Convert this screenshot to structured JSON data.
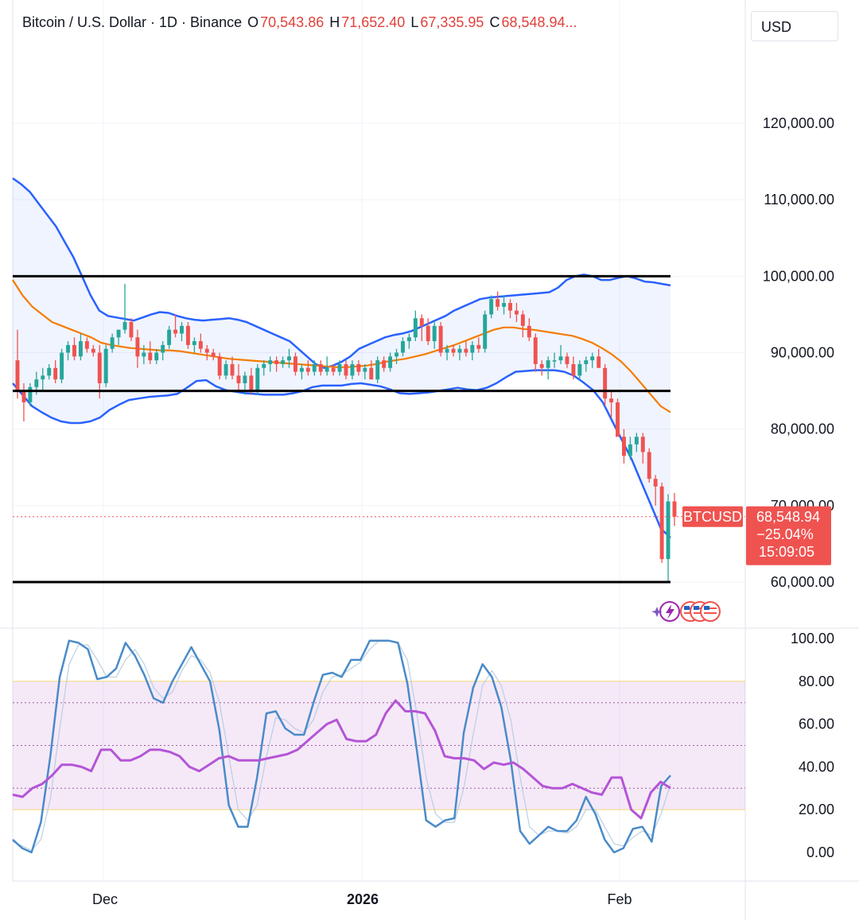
{
  "header": {
    "symbol": "Bitcoin / U.S. Dollar · 1D · Binance",
    "o_label": "O",
    "o_value": "70,543.86",
    "h_label": "H",
    "h_value": "71,652.40",
    "l_label": "L",
    "l_value": "67,335.95",
    "c_label": "C",
    "c_value": "68,548.94..."
  },
  "currency_button": "USD",
  "price_badge": {
    "ticker": "BTCUSD",
    "price": "68,548.94",
    "change": "−25.04%",
    "countdown": "15:09:05"
  },
  "colors": {
    "up": "#26a69a",
    "down": "#ef5350",
    "band": "#2962ff",
    "basis": "#f57c00",
    "stoch": "#4a8bc9",
    "rsi": "#b455d6",
    "badge": "#ef5350"
  },
  "chart_data": [
    {
      "type": "candlestick",
      "title": "Bitcoin / U.S. Dollar · 1D · Binance",
      "ylim": [
        55000,
        131000
      ],
      "y_ticks": [
        "120,000.00",
        "110,000.00",
        "100,000.00",
        "90,000.00",
        "80,000.00",
        "70,000.00",
        "60,000.00"
      ],
      "x_ticks": [
        "Dec",
        "2026",
        "Feb"
      ],
      "candles": [
        [
          89000,
          93000,
          84000,
          85000
        ],
        [
          85000,
          86000,
          81000,
          83500
        ],
        [
          83500,
          86000,
          83000,
          85500
        ],
        [
          85500,
          87500,
          84500,
          86500
        ],
        [
          86500,
          88000,
          85000,
          87000
        ],
        [
          87000,
          88500,
          86500,
          88000
        ],
        [
          88000,
          89000,
          86000,
          86500
        ],
        [
          86500,
          90500,
          86000,
          90000
        ],
        [
          90000,
          91500,
          89000,
          91000
        ],
        [
          91000,
          92000,
          89000,
          89500
        ],
        [
          89500,
          92500,
          89000,
          91500
        ],
        [
          91500,
          92000,
          90000,
          90500
        ],
        [
          90500,
          91000,
          89500,
          90000
        ],
        [
          90000,
          91000,
          84000,
          86000
        ],
        [
          86000,
          91000,
          85500,
          90500
        ],
        [
          90500,
          92500,
          90000,
          92000
        ],
        [
          92000,
          93000,
          91000,
          93000
        ],
        [
          93000,
          99000,
          92500,
          94000
        ],
        [
          94000,
          94500,
          91500,
          92000
        ],
        [
          92000,
          93000,
          88000,
          89500
        ],
        [
          89500,
          91000,
          88500,
          90000
        ],
        [
          90000,
          91500,
          88500,
          89000
        ],
        [
          89000,
          90500,
          88500,
          90000
        ],
        [
          90000,
          91500,
          89000,
          91000
        ],
        [
          91000,
          93500,
          90500,
          93000
        ],
        [
          93000,
          95000,
          92000,
          92500
        ],
        [
          92500,
          94000,
          91500,
          93500
        ],
        [
          93500,
          94000,
          90500,
          91000
        ],
        [
          91000,
          92000,
          90000,
          91500
        ],
        [
          91500,
          92500,
          90000,
          90500
        ],
        [
          90500,
          91000,
          89000,
          90000
        ],
        [
          90000,
          90500,
          89000,
          89500
        ],
        [
          89500,
          90000,
          86500,
          87000
        ],
        [
          87000,
          89000,
          86500,
          88500
        ],
        [
          88500,
          89500,
          86500,
          87000
        ],
        [
          87000,
          88500,
          85000,
          86000
        ],
        [
          86000,
          87500,
          84500,
          87000
        ],
        [
          87000,
          88000,
          84500,
          85000
        ],
        [
          85000,
          88500,
          84500,
          88000
        ],
        [
          88000,
          89000,
          87000,
          88500
        ],
        [
          88500,
          89500,
          87500,
          89000
        ],
        [
          89000,
          89500,
          87500,
          88500
        ],
        [
          88500,
          89500,
          88000,
          89000
        ],
        [
          89000,
          90500,
          88000,
          89500
        ],
        [
          89500,
          90000,
          87000,
          87500
        ],
        [
          87500,
          88500,
          86500,
          88000
        ],
        [
          88000,
          89000,
          87000,
          87500
        ],
        [
          87500,
          89000,
          87000,
          88500
        ],
        [
          88500,
          89000,
          87000,
          87500
        ],
        [
          87500,
          89500,
          87000,
          88000
        ],
        [
          88000,
          88500,
          87000,
          87500
        ],
        [
          87500,
          89000,
          87000,
          88500
        ],
        [
          88500,
          89000,
          86500,
          87000
        ],
        [
          87000,
          89000,
          86500,
          88500
        ],
        [
          88500,
          89000,
          87000,
          87500
        ],
        [
          87500,
          88500,
          86500,
          88000
        ],
        [
          88000,
          89000,
          86500,
          86500
        ],
        [
          86500,
          89500,
          86000,
          89000
        ],
        [
          89000,
          89500,
          87500,
          88000
        ],
        [
          88000,
          90000,
          87500,
          89500
        ],
        [
          89500,
          90500,
          88500,
          90000
        ],
        [
          90000,
          92000,
          89500,
          91500
        ],
        [
          91500,
          92500,
          90500,
          92000
        ],
        [
          92000,
          95500,
          91500,
          94500
        ],
        [
          94500,
          95000,
          91500,
          93500
        ],
        [
          93500,
          94500,
          91000,
          91500
        ],
        [
          91500,
          94000,
          90500,
          93500
        ],
        [
          93500,
          94000,
          89500,
          90000
        ],
        [
          90000,
          91000,
          89000,
          90500
        ],
        [
          90500,
          91000,
          89500,
          90000
        ],
        [
          90000,
          91000,
          89000,
          90500
        ],
        [
          90500,
          91500,
          89500,
          90000
        ],
        [
          90000,
          91500,
          89000,
          91000
        ],
        [
          91000,
          92000,
          90000,
          90500
        ],
        [
          90500,
          95500,
          90000,
          95000
        ],
        [
          95000,
          97500,
          94500,
          97000
        ],
        [
          97000,
          98000,
          95500,
          96000
        ],
        [
          96000,
          97500,
          95000,
          96500
        ],
        [
          96500,
          97000,
          94500,
          95500
        ],
        [
          95500,
          96500,
          94000,
          95000
        ],
        [
          95000,
          95500,
          92000,
          93500
        ],
        [
          93500,
          94500,
          91500,
          92000
        ],
        [
          92000,
          92500,
          87500,
          88500
        ],
        [
          88500,
          89000,
          87000,
          88000
        ],
        [
          88000,
          89500,
          86500,
          89000
        ],
        [
          89000,
          90000,
          88000,
          89000
        ],
        [
          89000,
          91000,
          88500,
          89500
        ],
        [
          89500,
          90000,
          88000,
          88500
        ],
        [
          88500,
          89500,
          86500,
          87000
        ],
        [
          87000,
          89000,
          86500,
          88500
        ],
        [
          88500,
          89500,
          87500,
          89000
        ],
        [
          89000,
          90000,
          88000,
          89500
        ],
        [
          89500,
          90500,
          88500,
          88000
        ],
        [
          88000,
          88500,
          83000,
          84000
        ],
        [
          84000,
          85000,
          81500,
          83500
        ],
        [
          83500,
          84000,
          79000,
          79000
        ],
        [
          79000,
          80000,
          75500,
          76500
        ],
        [
          76500,
          79000,
          76000,
          78000
        ],
        [
          78000,
          79500,
          77000,
          79000
        ],
        [
          79000,
          79500,
          75500,
          77000
        ],
        [
          77000,
          77500,
          73000,
          73500
        ],
        [
          73500,
          74000,
          70000,
          72500
        ],
        [
          72500,
          73000,
          62500,
          63000
        ],
        [
          63000,
          71500,
          60000,
          70543
        ],
        [
          70543,
          71652,
          67335,
          68548
        ]
      ],
      "series": [
        {
          "name": "upper",
          "values": [
            112800,
            112000,
            111000,
            109500,
            108000,
            106500,
            104500,
            102500,
            100000,
            97500,
            95500,
            94800,
            94600,
            94400,
            94200,
            94600,
            95000,
            95300,
            95200,
            94800,
            94500,
            94300,
            94200,
            94300,
            94400,
            94500,
            94300,
            94000,
            93500,
            93000,
            92500,
            92000,
            91500,
            90500,
            89500,
            88500,
            88000,
            88300,
            88800,
            89500,
            90500,
            91000,
            91500,
            92000,
            92300,
            92500,
            92800,
            93300,
            93800,
            94300,
            94800,
            95500,
            96000,
            96500,
            97000,
            97200,
            97300,
            97400,
            97500,
            97600,
            97700,
            97800,
            97900,
            98500,
            99500,
            100000,
            100200,
            100000,
            99500,
            99500,
            99800,
            100000,
            99700,
            99300,
            99200,
            99000,
            98800
          ],
          "x_start": 0
        },
        {
          "name": "basis",
          "values": [
            99500,
            97500,
            96000,
            95000,
            94000,
            93500,
            93000,
            92500,
            92000,
            91300,
            91000,
            90800,
            90600,
            90500,
            90400,
            90300,
            90300,
            90200,
            90000,
            89800,
            89600,
            89400,
            89200,
            89100,
            89000,
            88900,
            88800,
            88700,
            88600,
            88500,
            88400,
            88300,
            88200,
            88100,
            88100,
            88200,
            88300,
            88500,
            88800,
            89000,
            89200,
            89500,
            89800,
            90200,
            90600,
            91000,
            91500,
            92000,
            92500,
            93000,
            93300,
            93300,
            93100,
            93000,
            92800,
            92600,
            92400,
            92200,
            91800,
            91300,
            90600,
            89800,
            88800,
            87500,
            86000,
            84500,
            83000,
            82200
          ],
          "x_start": 0
        },
        {
          "name": "lower",
          "values": [
            86000,
            84500,
            83000,
            82200,
            81500,
            81000,
            80800,
            80800,
            81000,
            81500,
            82500,
            83200,
            83800,
            84000,
            84200,
            84300,
            84400,
            84600,
            85400,
            86300,
            86400,
            85600,
            85100,
            84900,
            84700,
            84600,
            84500,
            84500,
            84500,
            84700,
            85000,
            85500,
            85700,
            85700,
            85700,
            85900,
            86000,
            85800,
            85600,
            85200,
            84700,
            84600,
            84700,
            84800,
            85000,
            85200,
            85400,
            85200,
            85100,
            85400,
            86000,
            86800,
            87500,
            87600,
            87700,
            87700,
            87700,
            87500,
            87000,
            86100,
            85100,
            83500,
            81000,
            78500,
            76000,
            73000,
            70000,
            67000,
            65800
          ],
          "x_start": 0
        }
      ]
    },
    {
      "type": "line",
      "title": "",
      "ylim": [
        -7,
        107
      ],
      "y_ticks": [
        "100.00",
        "80.00",
        "60.00",
        "40.00",
        "20.00",
        "0.00"
      ],
      "series": [
        {
          "name": "stoch_k",
          "values": [
            6,
            2,
            0,
            14,
            45,
            82,
            99,
            98,
            95,
            81,
            82,
            86,
            98,
            92,
            83,
            72,
            70,
            80,
            88,
            96,
            88,
            80,
            57,
            22,
            12,
            12,
            35,
            65,
            66,
            58,
            55,
            55,
            70,
            83,
            84,
            82,
            90,
            90,
            99,
            99,
            99,
            98,
            79,
            48,
            15,
            12,
            15,
            16,
            56,
            77,
            88,
            82,
            68,
            43,
            10,
            4,
            8,
            12,
            10,
            10,
            15,
            26,
            18,
            6,
            0,
            2,
            11,
            12,
            5,
            31,
            36
          ]
        },
        {
          "name": "stoch_d",
          "values": [
            5,
            3,
            1,
            6,
            25,
            58,
            88,
            97,
            97,
            90,
            82,
            82,
            90,
            95,
            88,
            77,
            72,
            75,
            85,
            92,
            90,
            84,
            70,
            45,
            20,
            15,
            22,
            45,
            63,
            62,
            58,
            56,
            62,
            75,
            82,
            83,
            86,
            89,
            95,
            99,
            99,
            98,
            90,
            65,
            35,
            18,
            14,
            14,
            30,
            55,
            78,
            85,
            78,
            62,
            35,
            12,
            8,
            10,
            10,
            9,
            12,
            20,
            20,
            12,
            4,
            3,
            7,
            10,
            8,
            18,
            32
          ]
        },
        {
          "name": "rsi",
          "values": [
            27,
            26,
            30,
            32,
            36,
            41,
            41,
            40,
            38,
            48,
            48,
            43,
            43,
            45,
            48,
            48,
            47,
            45,
            40,
            38,
            41,
            44,
            45,
            43,
            43,
            43,
            44,
            45,
            46,
            48,
            52,
            56,
            60,
            62,
            53,
            52,
            52,
            55,
            65,
            71,
            66,
            66,
            65,
            57,
            45,
            44,
            44,
            43,
            39,
            42,
            41,
            42,
            39,
            35,
            31,
            30,
            30,
            32,
            30,
            28,
            27,
            35,
            35,
            20,
            16,
            28,
            33,
            30
          ]
        }
      ]
    }
  ]
}
